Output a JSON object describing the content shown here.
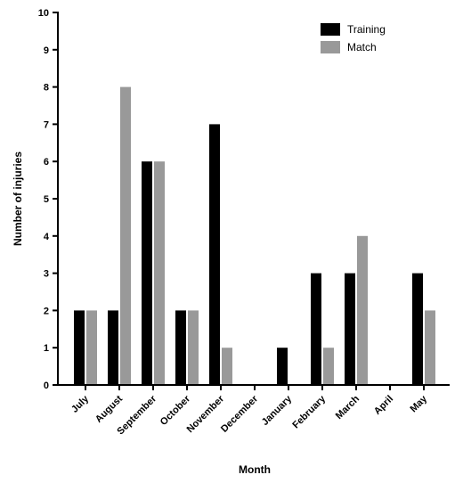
{
  "chart_data": {
    "type": "bar",
    "title": "",
    "xlabel": "Month",
    "ylabel": "Number of injuries",
    "ylim": [
      0,
      10
    ],
    "yticks": [
      0,
      1,
      2,
      3,
      4,
      5,
      6,
      7,
      8,
      9,
      10
    ],
    "categories": [
      "July",
      "August",
      "September",
      "October",
      "November",
      "December",
      "January",
      "February",
      "March",
      "April",
      "May"
    ],
    "series": [
      {
        "name": "Training",
        "color": "#000000",
        "values": [
          2,
          2,
          6,
          2,
          7,
          0,
          1,
          3,
          3,
          0,
          3
        ]
      },
      {
        "name": "Match",
        "color": "#999999",
        "values": [
          2,
          8,
          6,
          2,
          1,
          0,
          0,
          1,
          4,
          0,
          2
        ]
      }
    ],
    "legend": "top-right",
    "grid": false
  }
}
